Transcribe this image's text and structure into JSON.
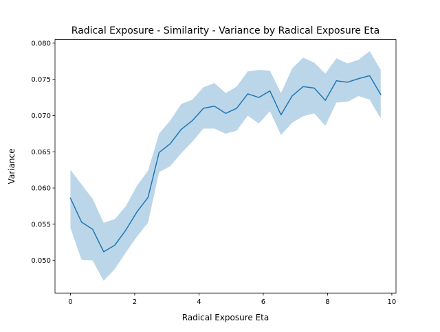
{
  "chart_data": {
    "type": "line",
    "title": "Radical Exposure - Similarity - Variance by Radical Exposure Eta",
    "xlabel": "Radical Exposure Eta",
    "ylabel": "Variance",
    "xlim": [
      -0.48,
      10.13
    ],
    "ylim": [
      0.0455,
      0.0805
    ],
    "xticks": [
      0,
      2,
      4,
      6,
      8,
      10
    ],
    "xtick_labels": [
      "0",
      "2",
      "4",
      "6",
      "8",
      "10"
    ],
    "yticks": [
      0.05,
      0.055,
      0.06,
      0.065,
      0.07,
      0.075,
      0.08
    ],
    "ytick_labels": [
      "0.050",
      "0.055",
      "0.060",
      "0.065",
      "0.070",
      "0.075",
      "0.080"
    ],
    "grid": false,
    "legend": "none",
    "line_color": "#1f77b4",
    "band_color": "#1f77b4",
    "band_opacity": 0.3,
    "x": [
      0,
      0.345,
      0.69,
      1.034,
      1.379,
      1.724,
      2.069,
      2.414,
      2.759,
      3.103,
      3.448,
      3.793,
      4.138,
      4.483,
      4.828,
      5.172,
      5.517,
      5.862,
      6.207,
      6.552,
      6.897,
      7.241,
      7.586,
      7.931,
      8.276,
      8.621,
      8.966,
      9.31,
      9.655
    ],
    "series": [
      {
        "values": [
          0.0586,
          0.0553,
          0.0543,
          0.0512,
          0.0521,
          0.0542,
          0.0567,
          0.0587,
          0.0649,
          0.0661,
          0.0681,
          0.0693,
          0.071,
          0.0713,
          0.0703,
          0.071,
          0.073,
          0.0725,
          0.0734,
          0.0701,
          0.0727,
          0.074,
          0.0738,
          0.0721,
          0.0748,
          0.0746,
          0.0751,
          0.0755,
          0.0729
        ],
        "lower": [
          0.0545,
          0.0501,
          0.05,
          0.0472,
          0.0488,
          0.0511,
          0.0533,
          0.0552,
          0.0622,
          0.063,
          0.0648,
          0.0664,
          0.0682,
          0.0682,
          0.0675,
          0.0679,
          0.07,
          0.0689,
          0.0706,
          0.0673,
          0.069,
          0.0699,
          0.0703,
          0.0686,
          0.0718,
          0.0719,
          0.0727,
          0.0722,
          0.0696
        ],
        "upper": [
          0.0625,
          0.0605,
          0.0585,
          0.0552,
          0.0557,
          0.0575,
          0.0603,
          0.0624,
          0.0675,
          0.0693,
          0.0716,
          0.0722,
          0.0739,
          0.0745,
          0.0731,
          0.074,
          0.0761,
          0.0763,
          0.0762,
          0.0731,
          0.0765,
          0.078,
          0.0773,
          0.0758,
          0.0779,
          0.0772,
          0.0777,
          0.0789,
          0.0763
        ]
      }
    ]
  }
}
